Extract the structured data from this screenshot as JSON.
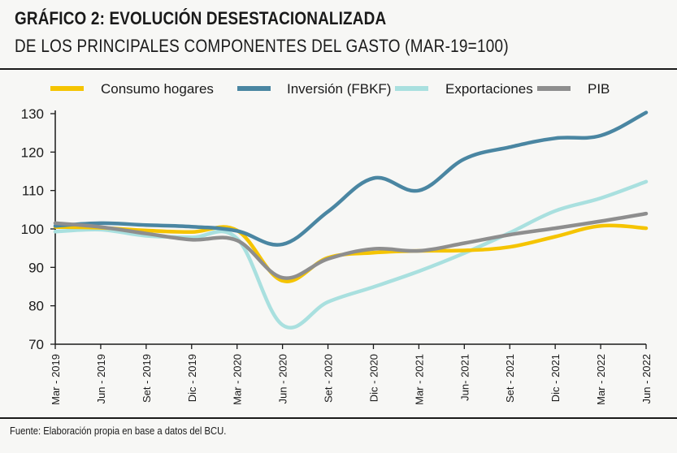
{
  "header": {
    "title": "GRÁFICO 2: EVOLUCIÓN DESESTACIONALIZADA",
    "subtitle": "DE LOS PRINCIPALES COMPONENTES DEL GASTO (MAR-19=100)"
  },
  "footer": {
    "source": "Fuente: Elaboración propia en base a datos del BCU."
  },
  "chart_data": {
    "type": "line",
    "title": "GRÁFICO 2: EVOLUCIÓN DESESTACIONALIZADA",
    "subtitle": "DE LOS PRINCIPALES COMPONENTES DEL GASTO (MAR-19=100)",
    "xlabel": "",
    "ylabel": "",
    "ylim": [
      70,
      130
    ],
    "yticks": [
      70,
      80,
      90,
      100,
      110,
      120,
      130
    ],
    "grid": false,
    "legend_position": "top",
    "categories": [
      "Mar - 2019",
      "Jun - 2019",
      "Set - 2019",
      "Dic - 2019",
      "Mar - 2020",
      "Jun - 2020",
      "Set - 2020",
      "Dic - 2020",
      "Mar - 2021",
      "Jun- 2021",
      "Set - 2021",
      "Dic - 2021",
      "Mar - 2022",
      "Jun - 2022"
    ],
    "series": [
      {
        "name": "Consumo hogares",
        "color": "#f5c400",
        "values": [
          100.5,
          100.3,
          99.6,
          99.2,
          99.6,
          86.5,
          92.5,
          93.8,
          94.3,
          94.4,
          95.3,
          98.0,
          100.8,
          100.2
        ]
      },
      {
        "name": "Inversión (FBKF)",
        "color": "#4a86a2",
        "values": [
          100.8,
          101.5,
          101.0,
          100.6,
          99.5,
          96.0,
          104.5,
          113.2,
          110.0,
          118.2,
          121.3,
          123.6,
          124.3,
          130.3
        ]
      },
      {
        "name": "Exportaciones",
        "color": "#a9e0df",
        "values": [
          99.3,
          99.8,
          98.2,
          97.8,
          97.5,
          75.0,
          81.0,
          84.9,
          89.0,
          93.7,
          99.0,
          104.7,
          108.0,
          112.3
        ]
      },
      {
        "name": "PIB",
        "color": "#8e8e8e",
        "values": [
          101.5,
          100.5,
          98.8,
          97.2,
          97.0,
          87.3,
          92.2,
          94.8,
          94.3,
          96.3,
          98.5,
          100.2,
          102.0,
          104.0
        ]
      }
    ]
  }
}
